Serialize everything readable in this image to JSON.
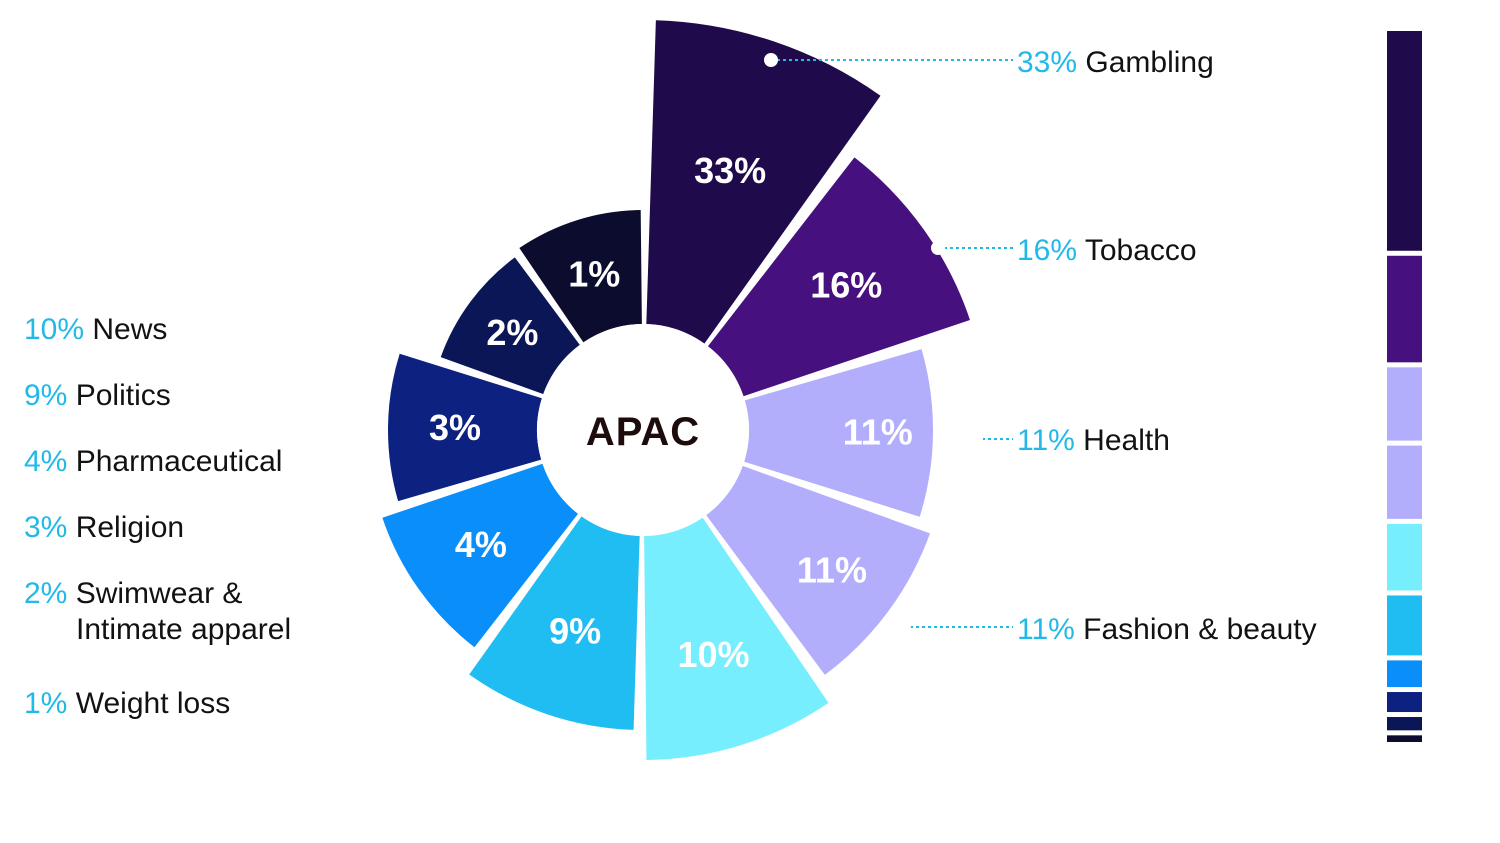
{
  "chart_data": {
    "type": "pie",
    "title": "APAC",
    "slices": [
      {
        "label": "Gambling",
        "value": 33,
        "display": "33%",
        "color": "#1f0a4c"
      },
      {
        "label": "Tobacco",
        "value": 16,
        "display": "16%",
        "color": "#46107f"
      },
      {
        "label": "Health",
        "value": 11,
        "display": "11%",
        "color": "#b2aefc"
      },
      {
        "label": "Fashion & beauty",
        "value": 11,
        "display": "11%",
        "color": "#b2aefc"
      },
      {
        "label": "News",
        "value": 10,
        "display": "10%",
        "color": "#76eefe"
      },
      {
        "label": "Politics",
        "value": 9,
        "display": "9%",
        "color": "#1fbdf2"
      },
      {
        "label": "Pharmaceutical",
        "value": 4,
        "display": "4%",
        "color": "#0a8ffa"
      },
      {
        "label": "Religion",
        "value": 3,
        "display": "3%",
        "color": "#0c2180"
      },
      {
        "label": "Swimwear & Intimate apparel",
        "value": 2,
        "display": "2%",
        "color": "#0b1656"
      },
      {
        "label": "Weight loss",
        "value": 1,
        "display": "1%",
        "color": "#0c0c2e"
      }
    ]
  },
  "callouts": [
    {
      "pct": "33%",
      "label": "Gambling"
    },
    {
      "pct": "16%",
      "label": "Tobacco"
    },
    {
      "pct": "11%",
      "label": "Health"
    },
    {
      "pct": "11%",
      "label": "Fashion & beauty"
    }
  ],
  "left_legend": [
    {
      "pct": "10%",
      "label": "News"
    },
    {
      "pct": "9%",
      "label": "Politics"
    },
    {
      "pct": "4%",
      "label": "Pharmaceutical"
    },
    {
      "pct": "3%",
      "label": "Religion"
    },
    {
      "pct": "2%",
      "label": "Swimwear &",
      "label2": "Intimate apparel"
    },
    {
      "pct": "1%",
      "label": "Weight loss"
    }
  ],
  "colors": {
    "accent": "#22b9e9",
    "text": "#121212"
  }
}
